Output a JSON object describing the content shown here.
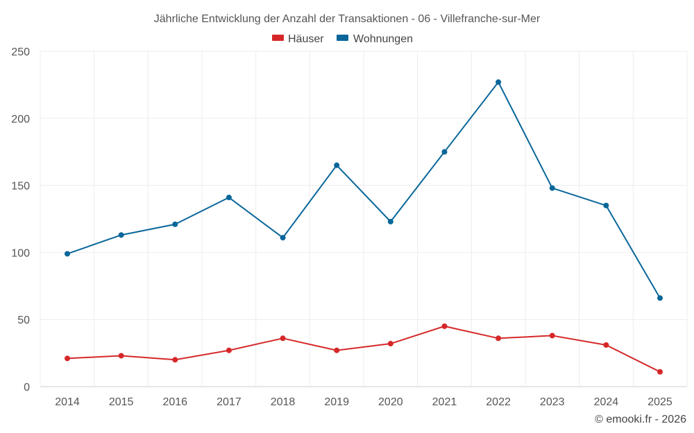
{
  "chart_data": {
    "type": "line",
    "title": "Jährliche Entwicklung der Anzahl der Transaktionen - 06 - Villefranche-sur-Mer",
    "categories": [
      "2014",
      "2015",
      "2016",
      "2017",
      "2018",
      "2019",
      "2020",
      "2021",
      "2022",
      "2023",
      "2024",
      "2025"
    ],
    "series": [
      {
        "name": "Häuser",
        "color": "#d62728",
        "values": [
          21,
          23,
          20,
          27,
          36,
          27,
          32,
          45,
          36,
          38,
          31,
          11
        ]
      },
      {
        "name": "Wohnungen",
        "color": "#08669a",
        "values": [
          99,
          113,
          121,
          141,
          111,
          165,
          123,
          175,
          227,
          148,
          135,
          66
        ]
      }
    ],
    "ylim": [
      0,
      250
    ],
    "yticks": [
      "0",
      "50",
      "100",
      "150",
      "200",
      "250"
    ],
    "xlabel": "",
    "ylabel": "",
    "grid": true,
    "legend": "top-center"
  },
  "credit": "© emooki.fr - 2026"
}
